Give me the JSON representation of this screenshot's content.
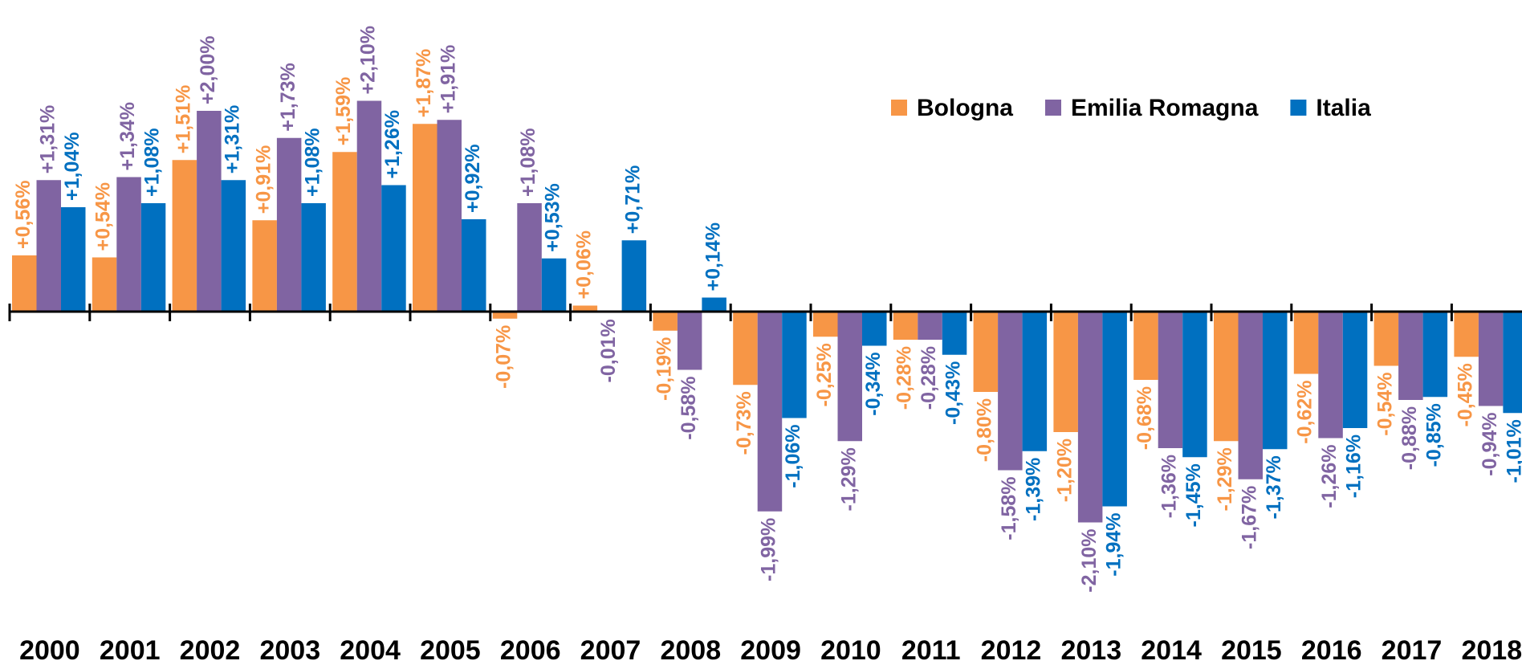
{
  "chart_data": {
    "type": "bar",
    "categories": [
      "2000",
      "2001",
      "2002",
      "2003",
      "2004",
      "2005",
      "2006",
      "2007",
      "2008",
      "2009",
      "2010",
      "2011",
      "2012",
      "2013",
      "2014",
      "2015",
      "2016",
      "2017",
      "2018"
    ],
    "series": [
      {
        "name": "Bologna",
        "color": "#f79646",
        "values": [
          0.56,
          0.54,
          1.51,
          0.91,
          1.59,
          1.87,
          -0.07,
          0.06,
          -0.19,
          -0.73,
          -0.25,
          -0.28,
          -0.8,
          -1.2,
          -0.68,
          -1.29,
          -0.62,
          -0.54,
          -0.45
        ],
        "value_labels": [
          "+0,56%",
          "+0,54%",
          "+1,51%",
          "+0,91%",
          "+1,59%",
          "+1,87%",
          "-0,07%",
          "+0,06%",
          "-0,19%",
          "-0,73%",
          "-0,25%",
          "-0,28%",
          "-0,80%",
          "-1,20%",
          "-0,68%",
          "-1,29%",
          "-0,62%",
          "-0,54%",
          "-0,45%"
        ]
      },
      {
        "name": "Emilia Romagna",
        "color": "#8064a2",
        "values": [
          1.31,
          1.34,
          2.0,
          1.73,
          2.1,
          1.91,
          1.08,
          -0.01,
          -0.58,
          -1.99,
          -1.29,
          -0.28,
          -1.58,
          -2.1,
          -1.36,
          -1.67,
          -1.26,
          -0.88,
          -0.94
        ],
        "value_labels": [
          "+1,31%",
          "+1,34%",
          "+2,00%",
          "+1,73%",
          "+2,10%",
          "+1,91%",
          "+1,08%",
          "-0,01%",
          "-0,58%",
          "-1,99%",
          "-1,29%",
          "-0,28%",
          "-1,58%",
          "-2,10%",
          "-1,36%",
          "-1,67%",
          "-1,26%",
          "-0,88%",
          "-0,94%"
        ]
      },
      {
        "name": "Italia",
        "color": "#0070c0",
        "values": [
          1.04,
          1.08,
          1.31,
          1.08,
          1.26,
          0.92,
          0.53,
          0.71,
          0.14,
          -1.06,
          -0.34,
          -0.43,
          -1.39,
          -1.94,
          -1.45,
          -1.37,
          -1.16,
          -0.85,
          -1.01
        ],
        "value_labels": [
          "+1,04%",
          "+1,08%",
          "+1,31%",
          "+1,08%",
          "+1,26%",
          "+0,92%",
          "+0,53%",
          "+0,71%",
          "+0,14%",
          "-1,06%",
          "-0,34%",
          "-0,43%",
          "-1,39%",
          "-1,94%",
          "-1,45%",
          "-1,37%",
          "-1,16%",
          "-0,85%",
          "-1,01%"
        ]
      }
    ],
    "legend": "top-right"
  }
}
